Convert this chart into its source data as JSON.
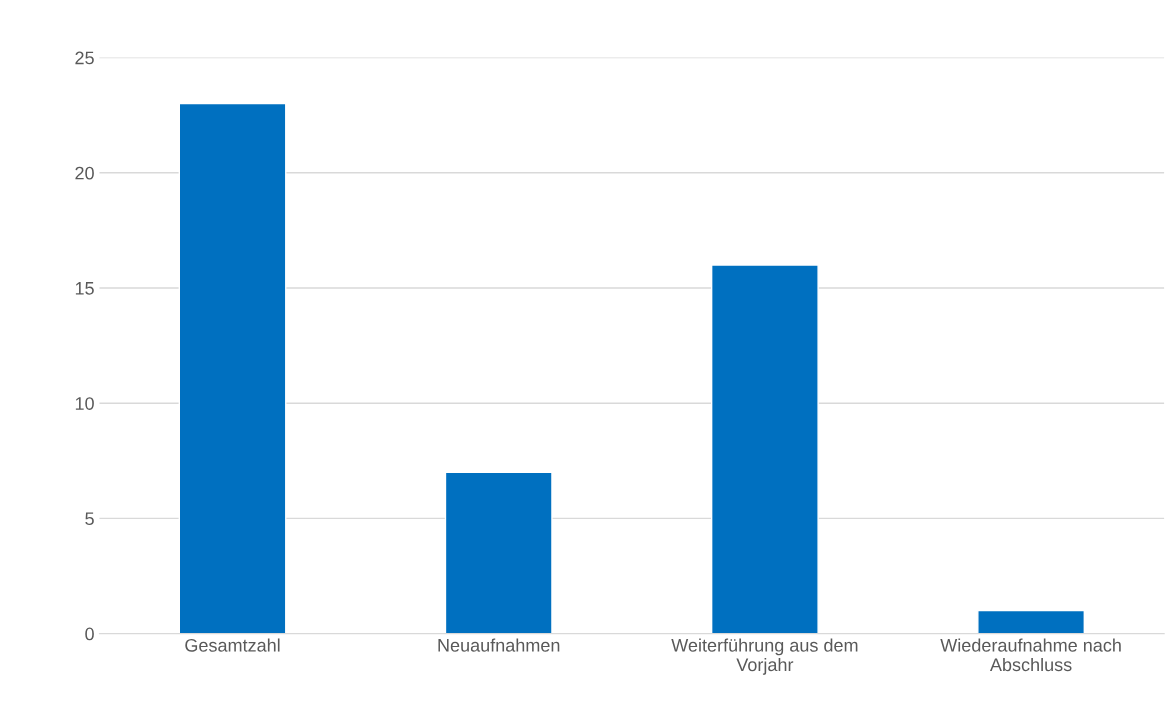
{
  "chart_data": {
    "type": "bar",
    "categories": [
      "Gesamtzahl",
      "Neuaufnahmen",
      "Weiterführung aus dem\nVorjahr",
      "Wiederaufnahme nach\nAbschluss"
    ],
    "values": [
      23,
      7,
      16,
      1
    ],
    "color": "#0070c0",
    "ylim": [
      0,
      25
    ],
    "yticks": [
      0,
      5,
      10,
      15,
      20,
      25
    ],
    "grid": "y",
    "legend": false
  }
}
